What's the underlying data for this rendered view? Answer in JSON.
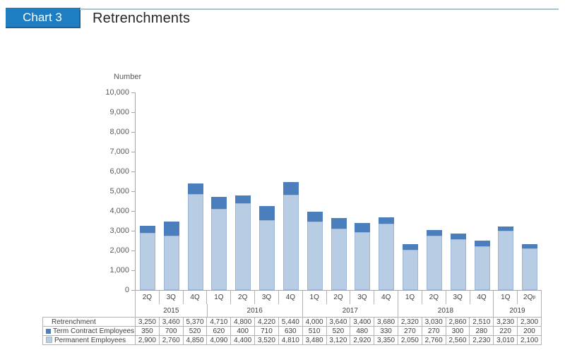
{
  "header": {
    "badge": "Chart 3",
    "title": "Retrenchments"
  },
  "colors": {
    "badge_bg": "#1f7dc1",
    "badge_edge": "#1563a0",
    "rule": "#a9c3cf",
    "term_contract": "#4a7ebc",
    "permanent": "#b8cce4",
    "permanent_edge": "#9fb7d7",
    "axis": "#a6a6a6",
    "axis_text": "#595959",
    "table_border": "#b3b3b3",
    "table_text": "#3f3f3f"
  },
  "chart_data": {
    "type": "bar",
    "stacked": true,
    "title": "Retrenchments",
    "ylabel": "Number",
    "xlabel": "",
    "ylim": [
      0,
      10000
    ],
    "ytick_step": 1000,
    "ytick_labels": [
      "0",
      "1,000",
      "2,000",
      "3,000",
      "4,000",
      "5,000",
      "6,000",
      "7,000",
      "8,000",
      "9,000",
      "10,000"
    ],
    "grid": false,
    "legend_position": "table-left",
    "categories": [
      "2Q",
      "3Q",
      "4Q",
      "1Q",
      "2Q",
      "3Q",
      "4Q",
      "1Q",
      "2Q",
      "3Q",
      "4Q",
      "1Q",
      "2Q",
      "3Q",
      "4Q",
      "1Q",
      "2Qp"
    ],
    "superscript_last_category": true,
    "year_groups": [
      {
        "label": "2015",
        "span": 3
      },
      {
        "label": "2016",
        "span": 4
      },
      {
        "label": "2017",
        "span": 4
      },
      {
        "label": "2018",
        "span": 4
      },
      {
        "label": "2019",
        "span": 2
      }
    ],
    "series": [
      {
        "name": "Permanent Employees",
        "color_key": "permanent",
        "values": [
          2900,
          2760,
          4850,
          4090,
          4400,
          3520,
          4810,
          3480,
          3120,
          2920,
          3350,
          2050,
          2760,
          2560,
          2230,
          3010,
          2100
        ]
      },
      {
        "name": "Term Contract Employees",
        "color_key": "term_contract",
        "values": [
          350,
          700,
          520,
          620,
          400,
          710,
          630,
          510,
          520,
          480,
          330,
          270,
          270,
          300,
          280,
          220,
          200
        ]
      }
    ],
    "table_rows": [
      {
        "label": "Retrenchment",
        "marker": null,
        "values": [
          "3,250",
          "3,460",
          "5,370",
          "4,710",
          "4,800",
          "4,220",
          "5,440",
          "4,000",
          "3,640",
          "3,400",
          "3,680",
          "2,320",
          "3,030",
          "2,860",
          "2,510",
          "3,230",
          "2,300"
        ]
      },
      {
        "label": "Term Contract Employees",
        "marker": "term_contract",
        "values": [
          "350",
          "700",
          "520",
          "620",
          "400",
          "710",
          "630",
          "510",
          "520",
          "480",
          "330",
          "270",
          "270",
          "300",
          "280",
          "220",
          "200"
        ]
      },
      {
        "label": "Permanent Employees",
        "marker": "permanent",
        "values": [
          "2,900",
          "2,760",
          "4,850",
          "4,090",
          "4,400",
          "3,520",
          "4,810",
          "3,480",
          "3,120",
          "2,920",
          "3,350",
          "2,050",
          "2,760",
          "2,560",
          "2,230",
          "3,010",
          "2,100"
        ]
      }
    ]
  }
}
